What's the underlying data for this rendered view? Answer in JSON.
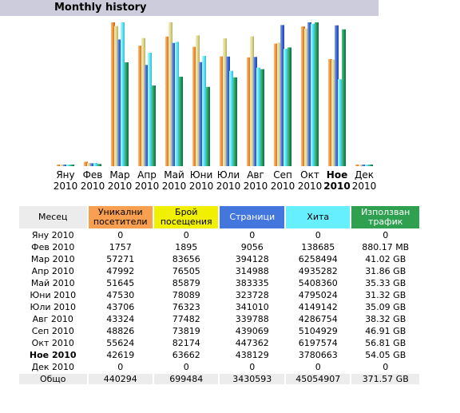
{
  "title": "Monthly history",
  "colors": {
    "visitors": "#f8a050",
    "visits": "#f0f000",
    "pages": "#4477dd",
    "hits": "#66f0ff",
    "bandwidth": "#2ea050"
  },
  "chart_data": {
    "type": "bar",
    "categories": [
      [
        "Яну",
        "2010"
      ],
      [
        "Фев",
        "2010"
      ],
      [
        "Мар",
        "2010"
      ],
      [
        "Апр",
        "2010"
      ],
      [
        "Май",
        "2010"
      ],
      [
        "Юни",
        "2010"
      ],
      [
        "Юли",
        "2010"
      ],
      [
        "Авг",
        "2010"
      ],
      [
        "Сеп",
        "2010"
      ],
      [
        "Окт",
        "2010"
      ],
      [
        "Ное",
        "2010"
      ],
      [
        "Дек",
        "2010"
      ]
    ],
    "current_index": 10,
    "series": [
      {
        "key": "visitors",
        "values": [
          0,
          1757,
          57271,
          47992,
          51645,
          47530,
          43706,
          43324,
          48826,
          55624,
          42619,
          0
        ]
      },
      {
        "key": "visits",
        "values": [
          0,
          1895,
          83656,
          76505,
          85879,
          78089,
          76323,
          77482,
          73819,
          82174,
          63662,
          0
        ]
      },
      {
        "key": "pages",
        "values": [
          0,
          9056,
          394128,
          314988,
          383335,
          323728,
          341010,
          339788,
          439069,
          447362,
          438129,
          0
        ]
      },
      {
        "key": "hits",
        "values": [
          0,
          138685,
          6258494,
          4935282,
          5408360,
          4795024,
          4149142,
          4286754,
          5104929,
          6197574,
          3780663,
          0
        ]
      },
      {
        "key": "bandwidth",
        "values_gb": [
          0,
          0.86,
          41.02,
          31.86,
          35.33,
          31.32,
          35.09,
          38.32,
          46.91,
          56.81,
          54.05,
          0
        ]
      }
    ]
  },
  "table": {
    "headers": {
      "month": "Месец",
      "visitors": "Уникални посетители",
      "visits": "Брой посещения",
      "pages": "Страници",
      "hits": "Хита",
      "bandwidth": "Използван трафик"
    },
    "rows": [
      {
        "month": "Яну 2010",
        "visitors": "0",
        "visits": "0",
        "pages": "0",
        "hits": "0",
        "bandwidth": "0"
      },
      {
        "month": "Фев 2010",
        "visitors": "1757",
        "visits": "1895",
        "pages": "9056",
        "hits": "138685",
        "bandwidth": "880.17 MB"
      },
      {
        "month": "Мар 2010",
        "visitors": "57271",
        "visits": "83656",
        "pages": "394128",
        "hits": "6258494",
        "bandwidth": "41.02 GB"
      },
      {
        "month": "Апр 2010",
        "visitors": "47992",
        "visits": "76505",
        "pages": "314988",
        "hits": "4935282",
        "bandwidth": "31.86 GB"
      },
      {
        "month": "Май 2010",
        "visitors": "51645",
        "visits": "85879",
        "pages": "383335",
        "hits": "5408360",
        "bandwidth": "35.33 GB"
      },
      {
        "month": "Юни 2010",
        "visitors": "47530",
        "visits": "78089",
        "pages": "323728",
        "hits": "4795024",
        "bandwidth": "31.32 GB"
      },
      {
        "month": "Юли 2010",
        "visitors": "43706",
        "visits": "76323",
        "pages": "341010",
        "hits": "4149142",
        "bandwidth": "35.09 GB"
      },
      {
        "month": "Авг 2010",
        "visitors": "43324",
        "visits": "77482",
        "pages": "339788",
        "hits": "4286754",
        "bandwidth": "38.32 GB"
      },
      {
        "month": "Сеп 2010",
        "visitors": "48826",
        "visits": "73819",
        "pages": "439069",
        "hits": "5104929",
        "bandwidth": "46.91 GB"
      },
      {
        "month": "Окт 2010",
        "visitors": "55624",
        "visits": "82174",
        "pages": "447362",
        "hits": "6197574",
        "bandwidth": "56.81 GB"
      },
      {
        "month": "Ное 2010",
        "visitors": "42619",
        "visits": "63662",
        "pages": "438129",
        "hits": "3780663",
        "bandwidth": "54.05 GB",
        "current": true
      },
      {
        "month": "Дек 2010",
        "visitors": "0",
        "visits": "0",
        "pages": "0",
        "hits": "0",
        "bandwidth": "0"
      }
    ],
    "total": {
      "month": "Общо",
      "visitors": "440294",
      "visits": "699484",
      "pages": "3430593",
      "hits": "45054907",
      "bandwidth": "371.57 GB"
    }
  }
}
